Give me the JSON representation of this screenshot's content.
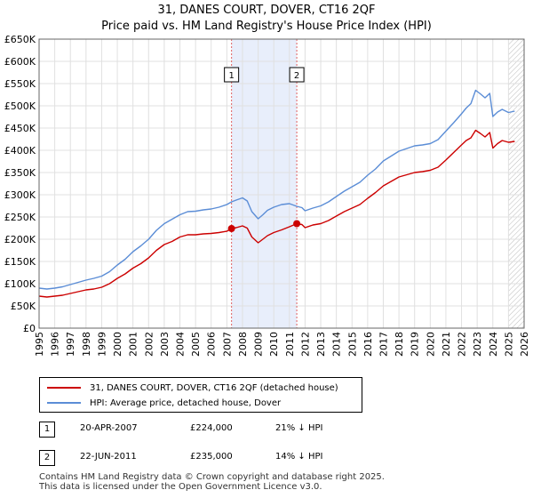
{
  "chart_data": {
    "type": "line",
    "title": "31, DANES COURT, DOVER, CT16 2QF",
    "subtitle": "Price paid vs. HM Land Registry's House Price Index (HPI)",
    "xlabel": "",
    "ylabel": "",
    "xlim": [
      1995,
      2026
    ],
    "ylim": [
      0,
      650000
    ],
    "x_ticks": [
      "1995",
      "1996",
      "1997",
      "1998",
      "1999",
      "2000",
      "2001",
      "2002",
      "2003",
      "2004",
      "2005",
      "2006",
      "2007",
      "2008",
      "2009",
      "2010",
      "2011",
      "2012",
      "2013",
      "2014",
      "2015",
      "2016",
      "2017",
      "2018",
      "2019",
      "2020",
      "2021",
      "2022",
      "2023",
      "2024",
      "2025",
      "2026"
    ],
    "y_ticks": [
      {
        "value": 0,
        "label": "£0"
      },
      {
        "value": 50000,
        "label": "£50K"
      },
      {
        "value": 100000,
        "label": "£100K"
      },
      {
        "value": 150000,
        "label": "£150K"
      },
      {
        "value": 200000,
        "label": "£200K"
      },
      {
        "value": 250000,
        "label": "£250K"
      },
      {
        "value": 300000,
        "label": "£300K"
      },
      {
        "value": 350000,
        "label": "£350K"
      },
      {
        "value": 400000,
        "label": "£400K"
      },
      {
        "value": 450000,
        "label": "£450K"
      },
      {
        "value": 500000,
        "label": "£500K"
      },
      {
        "value": 550000,
        "label": "£550K"
      },
      {
        "value": 600000,
        "label": "£600K"
      },
      {
        "value": 650000,
        "label": "£650K"
      }
    ],
    "grid": true,
    "shaded_band": {
      "x0": 2007.3,
      "x1": 2011.47
    },
    "hatched_after": 2025.0,
    "series": [
      {
        "name": "31, DANES COURT, DOVER, CT16 2QF (detached house)",
        "color": "#cc0000",
        "x": [
          1995.0,
          1995.5,
          1996.0,
          1996.5,
          1997.0,
          1997.5,
          1998.0,
          1998.5,
          1999.0,
          1999.5,
          2000.0,
          2000.5,
          2001.0,
          2001.5,
          2002.0,
          2002.5,
          2003.0,
          2003.5,
          2004.0,
          2004.5,
          2005.0,
          2005.5,
          2006.0,
          2006.5,
          2007.0,
          2007.3,
          2007.6,
          2008.0,
          2008.3,
          2008.6,
          2009.0,
          2009.3,
          2009.6,
          2010.0,
          2010.5,
          2011.0,
          2011.47,
          2011.8,
          2012.0,
          2012.5,
          2013.0,
          2013.5,
          2014.0,
          2014.5,
          2015.0,
          2015.5,
          2016.0,
          2016.5,
          2017.0,
          2017.5,
          2018.0,
          2018.5,
          2019.0,
          2019.5,
          2020.0,
          2020.5,
          2021.0,
          2021.5,
          2022.0,
          2022.3,
          2022.6,
          2022.9,
          2023.2,
          2023.5,
          2023.8,
          2024.0,
          2024.3,
          2024.6,
          2025.0,
          2025.4
        ],
        "values": [
          72000,
          70000,
          72000,
          74000,
          78000,
          82000,
          86000,
          88000,
          92000,
          100000,
          112000,
          122000,
          135000,
          145000,
          158000,
          175000,
          188000,
          195000,
          205000,
          210000,
          210000,
          212000,
          213000,
          215000,
          218000,
          224000,
          226000,
          230000,
          225000,
          205000,
          192000,
          200000,
          208000,
          215000,
          221000,
          228000,
          235000,
          233000,
          226000,
          232000,
          235000,
          242000,
          252000,
          262000,
          270000,
          278000,
          292000,
          305000,
          320000,
          330000,
          340000,
          345000,
          350000,
          352000,
          355000,
          362000,
          378000,
          395000,
          412000,
          422000,
          428000,
          445000,
          438000,
          430000,
          440000,
          405000,
          415000,
          422000,
          418000,
          420000
        ]
      },
      {
        "name": "HPI: Average price, detached house, Dover",
        "color": "#5b8dd6",
        "x": [
          1995.0,
          1995.5,
          1996.0,
          1996.5,
          1997.0,
          1997.5,
          1998.0,
          1998.5,
          1999.0,
          1999.5,
          2000.0,
          2000.5,
          2001.0,
          2001.5,
          2002.0,
          2002.5,
          2003.0,
          2003.5,
          2004.0,
          2004.5,
          2005.0,
          2005.5,
          2006.0,
          2006.5,
          2007.0,
          2007.3,
          2007.6,
          2008.0,
          2008.3,
          2008.6,
          2009.0,
          2009.3,
          2009.6,
          2010.0,
          2010.5,
          2011.0,
          2011.47,
          2011.8,
          2012.0,
          2012.5,
          2013.0,
          2013.5,
          2014.0,
          2014.5,
          2015.0,
          2015.5,
          2016.0,
          2016.5,
          2017.0,
          2017.5,
          2018.0,
          2018.5,
          2019.0,
          2019.5,
          2020.0,
          2020.5,
          2021.0,
          2021.5,
          2022.0,
          2022.3,
          2022.6,
          2022.9,
          2023.2,
          2023.5,
          2023.8,
          2024.0,
          2024.3,
          2024.6,
          2025.0,
          2025.4
        ],
        "values": [
          90000,
          88000,
          90000,
          93000,
          98000,
          103000,
          108000,
          112000,
          117000,
          127000,
          142000,
          155000,
          172000,
          185000,
          200000,
          220000,
          235000,
          245000,
          255000,
          262000,
          263000,
          266000,
          268000,
          272000,
          278000,
          284000,
          288000,
          293000,
          286000,
          262000,
          246000,
          255000,
          265000,
          272000,
          278000,
          280000,
          274000,
          271000,
          264000,
          270000,
          275000,
          284000,
          296000,
          308000,
          318000,
          328000,
          344000,
          358000,
          376000,
          387000,
          398000,
          404000,
          410000,
          412000,
          415000,
          424000,
          443000,
          462000,
          482000,
          495000,
          505000,
          535000,
          527000,
          518000,
          528000,
          476000,
          486000,
          492000,
          485000,
          488000
        ]
      }
    ],
    "sales": [
      {
        "label": "1",
        "x": 2007.3,
        "value": 224000
      },
      {
        "label": "2",
        "x": 2011.47,
        "value": 235000
      }
    ]
  },
  "legend": {
    "property": "31, DANES COURT, DOVER, CT16 2QF (detached house)",
    "hpi": "HPI: Average price, detached house, Dover"
  },
  "sales_table": [
    {
      "num": "1",
      "date": "20-APR-2007",
      "price": "£224,000",
      "hpi": "21% ↓ HPI"
    },
    {
      "num": "2",
      "date": "22-JUN-2011",
      "price": "£235,000",
      "hpi": "14% ↓ HPI"
    }
  ],
  "footer": {
    "line1": "Contains HM Land Registry data © Crown copyright and database right 2025.",
    "line2": "This data is licensed under the Open Government Licence v3.0."
  }
}
